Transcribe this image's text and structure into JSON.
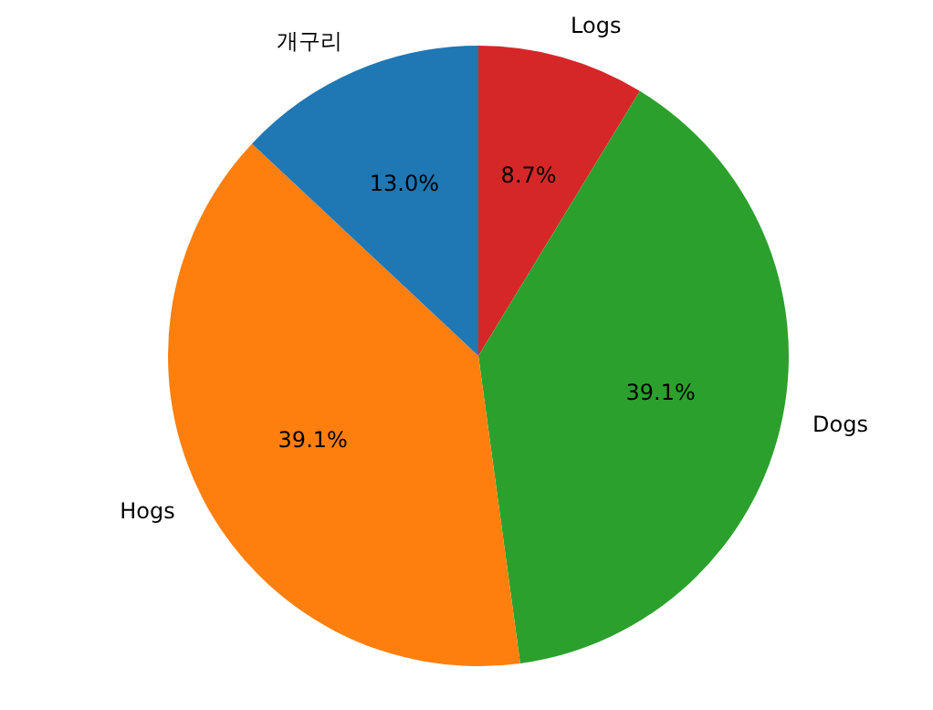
{
  "chart_data": {
    "type": "pie",
    "categories": [
      "개구리",
      "Hogs",
      "Dogs",
      "Logs"
    ],
    "values": [
      13.0,
      39.1,
      39.1,
      8.7
    ],
    "colors": [
      "#1f77b4",
      "#ff7f0e",
      "#2ca02c",
      "#d62728"
    ],
    "value_labels": [
      "13.0%",
      "39.1%",
      "39.1%",
      "8.7%"
    ],
    "legend": false
  }
}
